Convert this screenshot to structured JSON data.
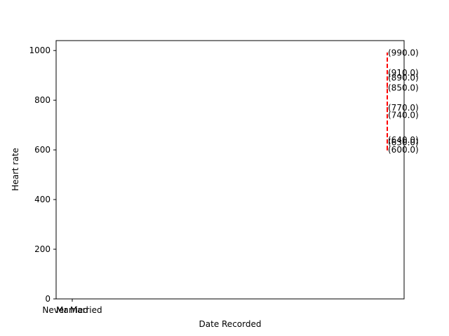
{
  "chart_data": {
    "type": "line",
    "title": "",
    "xlabel": "Date Recorded",
    "ylabel": "Heart rate",
    "ylim": [
      0,
      1040
    ],
    "yticks": [
      0,
      200,
      400,
      600,
      800,
      1000
    ],
    "xticks": [
      {
        "label": "Never Married"
      },
      {
        "label": "Married"
      }
    ],
    "grid": false,
    "series": [
      {
        "color": "#ff0000",
        "line_style": "dashed",
        "points": [
          {
            "y": 600,
            "label": "(600.0)"
          },
          {
            "y": 630,
            "label": "(630.0)"
          },
          {
            "y": 640,
            "label": "(640.0)"
          },
          {
            "y": 740,
            "label": "(740.0)"
          },
          {
            "y": 770,
            "label": "(770.0)"
          },
          {
            "y": 850,
            "label": "(850.0)"
          },
          {
            "y": 890,
            "label": "(890.0)"
          },
          {
            "y": 910,
            "label": "(910.0)"
          },
          {
            "y": 990,
            "label": "(990.0)"
          }
        ]
      }
    ]
  }
}
